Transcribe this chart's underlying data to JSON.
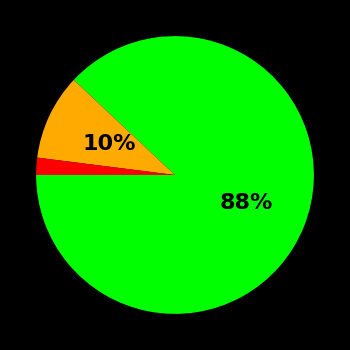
{
  "slices": [
    88,
    10,
    2
  ],
  "colors": [
    "#00ff00",
    "#ffaa00",
    "#ff0000"
  ],
  "background_color": "#000000",
  "label_fontsize": 16,
  "label_fontweight": "bold",
  "startangle": 90,
  "figsize": [
    3.5,
    3.5
  ],
  "dpi": 100,
  "green_label": "88%",
  "yellow_label": "10%",
  "green_label_r": 0.55,
  "yellow_label_r": 0.52
}
